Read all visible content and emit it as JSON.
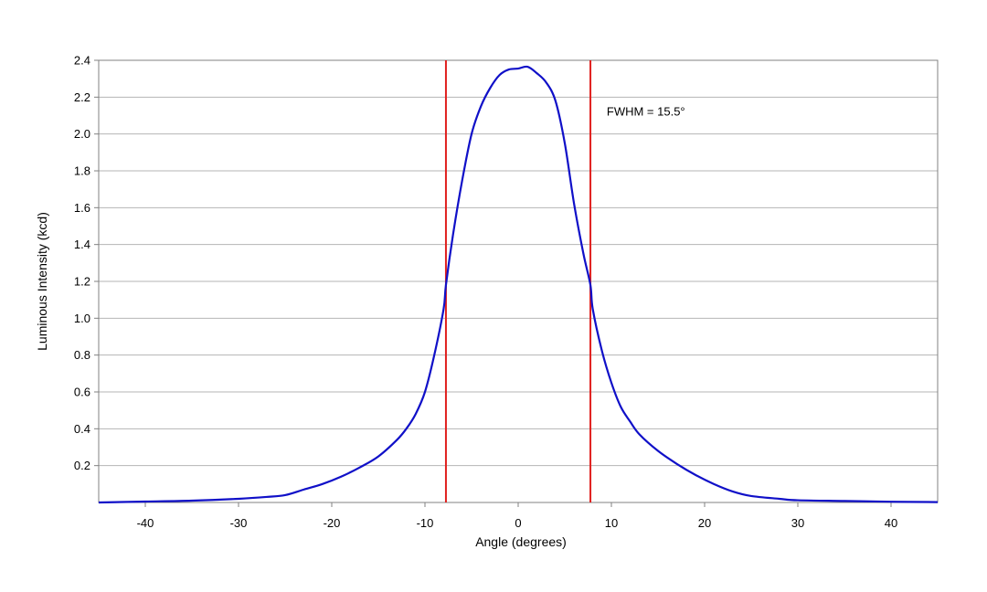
{
  "chart_data": {
    "type": "line",
    "title": "",
    "xlabel": "Angle (degrees)",
    "ylabel": "Luminous Intensity (kcd)",
    "xlim": [
      -45,
      45
    ],
    "ylim": [
      0,
      2.4
    ],
    "x_ticks": [
      -40,
      -30,
      -20,
      -10,
      0,
      10,
      20,
      30,
      40
    ],
    "y_ticks": [
      0.2,
      0.4,
      0.6,
      0.8,
      1.0,
      1.2,
      1.4,
      1.6,
      1.8,
      2.0,
      2.2,
      2.4
    ],
    "grid": "horizontal",
    "series": [
      {
        "color": "#1010c8",
        "points": [
          [
            -45,
            0.0
          ],
          [
            -40,
            0.005
          ],
          [
            -35,
            0.01
          ],
          [
            -30,
            0.02
          ],
          [
            -27,
            0.03
          ],
          [
            -25,
            0.04
          ],
          [
            -23,
            0.07
          ],
          [
            -21,
            0.1
          ],
          [
            -19,
            0.14
          ],
          [
            -17,
            0.19
          ],
          [
            -15,
            0.25
          ],
          [
            -13,
            0.34
          ],
          [
            -12,
            0.4
          ],
          [
            -11,
            0.48
          ],
          [
            -10,
            0.6
          ],
          [
            -9,
            0.8
          ],
          [
            -8,
            1.05
          ],
          [
            -7.75,
            1.18
          ],
          [
            -7,
            1.45
          ],
          [
            -6,
            1.75
          ],
          [
            -5,
            2.0
          ],
          [
            -4,
            2.15
          ],
          [
            -3,
            2.25
          ],
          [
            -2,
            2.32
          ],
          [
            -1,
            2.35
          ],
          [
            0,
            2.355
          ],
          [
            1,
            2.365
          ],
          [
            2,
            2.33
          ],
          [
            3,
            2.28
          ],
          [
            4,
            2.18
          ],
          [
            5,
            1.95
          ],
          [
            6,
            1.62
          ],
          [
            7,
            1.35
          ],
          [
            7.75,
            1.18
          ],
          [
            8,
            1.05
          ],
          [
            9,
            0.82
          ],
          [
            10,
            0.65
          ],
          [
            11,
            0.52
          ],
          [
            12,
            0.44
          ],
          [
            13,
            0.37
          ],
          [
            15,
            0.28
          ],
          [
            17,
            0.21
          ],
          [
            19,
            0.15
          ],
          [
            21,
            0.1
          ],
          [
            23,
            0.06
          ],
          [
            25,
            0.035
          ],
          [
            28,
            0.02
          ],
          [
            30,
            0.012
          ],
          [
            35,
            0.008
          ],
          [
            40,
            0.004
          ],
          [
            45,
            0.002
          ]
        ]
      }
    ],
    "reference_lines": [
      {
        "axis": "x",
        "value": -7.75,
        "color": "#e0201e"
      },
      {
        "axis": "x",
        "value": 7.75,
        "color": "#e0201e"
      }
    ],
    "annotations": [
      {
        "text": "FWHM = 15.5°",
        "x": 9.5,
        "y": 2.1
      }
    ]
  }
}
